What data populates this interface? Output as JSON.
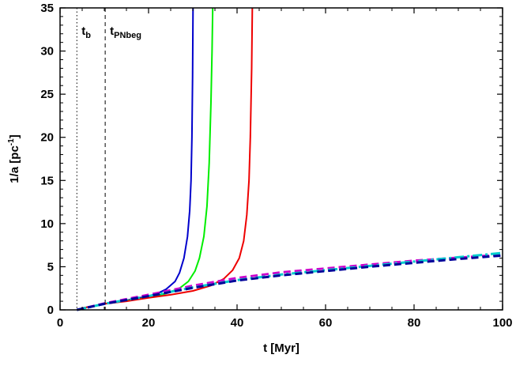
{
  "chart_data": {
    "type": "line",
    "title": "",
    "xlabel": "t [Myr]",
    "ylabel": {
      "main": "1/a [pc",
      "sup": "-1",
      "end": "]"
    },
    "xlim": [
      0,
      100
    ],
    "ylim": [
      0,
      35
    ],
    "xticks": [
      0,
      20,
      40,
      60,
      80,
      100
    ],
    "yticks": [
      0,
      5,
      10,
      15,
      20,
      25,
      30,
      35
    ],
    "grid": false,
    "legend": "none",
    "annotations": [
      {
        "name": "tb",
        "main": "t",
        "sub": "b",
        "x": 3.8,
        "linestyle": "dotted"
      },
      {
        "name": "tpnbeg",
        "main": "t",
        "sub": "PNbeg",
        "x": 10.2,
        "linestyle": "dashed"
      }
    ],
    "series": [
      {
        "color": "#0000cc",
        "dash": "solid",
        "points": [
          [
            3.8,
            0
          ],
          [
            5,
            0.2
          ],
          [
            10,
            0.7
          ],
          [
            15,
            1.1
          ],
          [
            20,
            1.6
          ],
          [
            22,
            1.9
          ],
          [
            24,
            2.4
          ],
          [
            26,
            3.3
          ],
          [
            27,
            4.3
          ],
          [
            28,
            6.0
          ],
          [
            28.8,
            8.5
          ],
          [
            29.3,
            11.5
          ],
          [
            29.6,
            15.0
          ],
          [
            29.8,
            20.0
          ],
          [
            29.95,
            27.0
          ],
          [
            30.05,
            35.0
          ]
        ]
      },
      {
        "color": "#00ee00",
        "dash": "solid",
        "points": [
          [
            3.8,
            0
          ],
          [
            5,
            0.2
          ],
          [
            10,
            0.7
          ],
          [
            15,
            1.05
          ],
          [
            20,
            1.45
          ],
          [
            24,
            1.9
          ],
          [
            27,
            2.5
          ],
          [
            29,
            3.3
          ],
          [
            30.5,
            4.5
          ],
          [
            31.5,
            6.0
          ],
          [
            32.5,
            8.5
          ],
          [
            33.2,
            12.0
          ],
          [
            33.7,
            17.0
          ],
          [
            34.1,
            24.0
          ],
          [
            34.35,
            30.0
          ],
          [
            34.5,
            35.0
          ]
        ]
      },
      {
        "color": "#ee0000",
        "dash": "solid",
        "points": [
          [
            3.8,
            0
          ],
          [
            5,
            0.2
          ],
          [
            10,
            0.7
          ],
          [
            15,
            1.0
          ],
          [
            20,
            1.4
          ],
          [
            25,
            1.75
          ],
          [
            30,
            2.2
          ],
          [
            34,
            2.8
          ],
          [
            37,
            3.6
          ],
          [
            39,
            4.6
          ],
          [
            40.5,
            6.0
          ],
          [
            41.5,
            8.0
          ],
          [
            42.2,
            11.0
          ],
          [
            42.7,
            15.0
          ],
          [
            43.0,
            20.0
          ],
          [
            43.3,
            28.0
          ],
          [
            43.45,
            35.0
          ]
        ]
      },
      {
        "color": "#cc00cc",
        "dash": "dashed",
        "points": [
          [
            3.8,
            0
          ],
          [
            10,
            0.75
          ],
          [
            20,
            1.75
          ],
          [
            30,
            2.8
          ],
          [
            40,
            3.7
          ],
          [
            50,
            4.35
          ],
          [
            60,
            4.8
          ],
          [
            70,
            5.25
          ],
          [
            80,
            5.7
          ],
          [
            90,
            6.05
          ],
          [
            100,
            6.4
          ]
        ]
      },
      {
        "color": "#00cccc",
        "dash": "dashdot",
        "points": [
          [
            3.8,
            0
          ],
          [
            10,
            0.7
          ],
          [
            20,
            1.6
          ],
          [
            30,
            2.6
          ],
          [
            40,
            3.45
          ],
          [
            50,
            4.1
          ],
          [
            60,
            4.6
          ],
          [
            70,
            5.1
          ],
          [
            80,
            5.6
          ],
          [
            90,
            6.1
          ],
          [
            100,
            6.6
          ]
        ]
      },
      {
        "color": "#000099",
        "dash": "dashed",
        "points": [
          [
            3.8,
            0
          ],
          [
            10,
            0.7
          ],
          [
            20,
            1.6
          ],
          [
            30,
            2.55
          ],
          [
            40,
            3.4
          ],
          [
            50,
            4.0
          ],
          [
            60,
            4.5
          ],
          [
            70,
            5.0
          ],
          [
            80,
            5.45
          ],
          [
            90,
            5.9
          ],
          [
            100,
            6.3
          ]
        ]
      }
    ]
  }
}
